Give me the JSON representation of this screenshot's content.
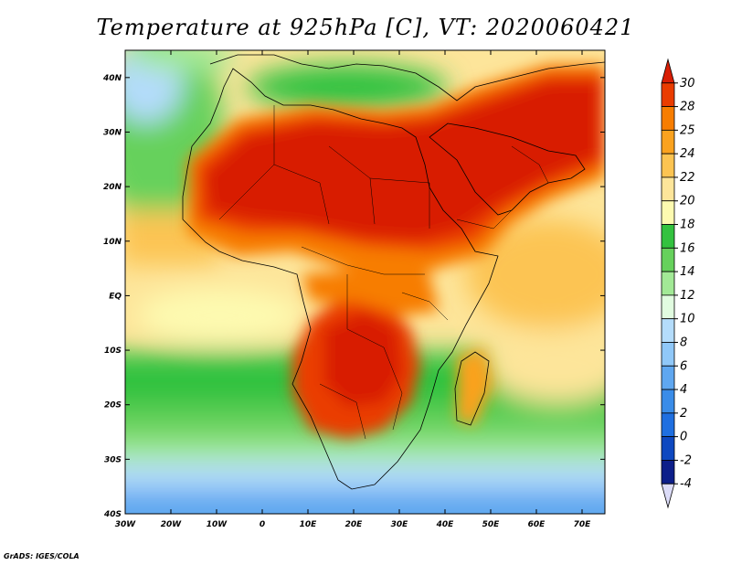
{
  "title": "Temperature at 925hPa [C], VT: 2020060421",
  "credit": "GrADS: IGES/COLA",
  "map": {
    "lon_range": [
      -30,
      75
    ],
    "lat_range": [
      -40,
      45
    ],
    "lon_ticks": [
      {
        "value": -30,
        "label": "30W"
      },
      {
        "value": -20,
        "label": "20W"
      },
      {
        "value": -10,
        "label": "10W"
      },
      {
        "value": 0,
        "label": "0"
      },
      {
        "value": 10,
        "label": "10E"
      },
      {
        "value": 20,
        "label": "20E"
      },
      {
        "value": 30,
        "label": "30E"
      },
      {
        "value": 40,
        "label": "40E"
      },
      {
        "value": 50,
        "label": "50E"
      },
      {
        "value": 60,
        "label": "60E"
      },
      {
        "value": 70,
        "label": "70E"
      }
    ],
    "lat_ticks": [
      {
        "value": 40,
        "label": "40N"
      },
      {
        "value": 30,
        "label": "30N"
      },
      {
        "value": 20,
        "label": "20N"
      },
      {
        "value": 10,
        "label": "10N"
      },
      {
        "value": 0,
        "label": "EQ"
      },
      {
        "value": -10,
        "label": "10S"
      },
      {
        "value": -20,
        "label": "20S"
      },
      {
        "value": -30,
        "label": "30S"
      },
      {
        "value": -40,
        "label": "40S"
      }
    ]
  },
  "colorbar": {
    "levels": [
      "30",
      "28",
      "25",
      "24",
      "22",
      "20",
      "18",
      "16",
      "14",
      "12",
      "10",
      "8",
      "6",
      "4",
      "2",
      "0",
      "-2",
      "-4"
    ],
    "colors": [
      "#d81e05",
      "#ea3c00",
      "#f77d00",
      "#faa21f",
      "#fcc452",
      "#fde59a",
      "#fdfab0",
      "#33c23f",
      "#66d15c",
      "#a2e996",
      "#e1fce0",
      "#b4dcfb",
      "#90c8f8",
      "#5fa7f0",
      "#3a8ce8",
      "#1f6fe0",
      "#0e48c0",
      "#0d1f8a",
      "#dcdcf8"
    ]
  }
}
